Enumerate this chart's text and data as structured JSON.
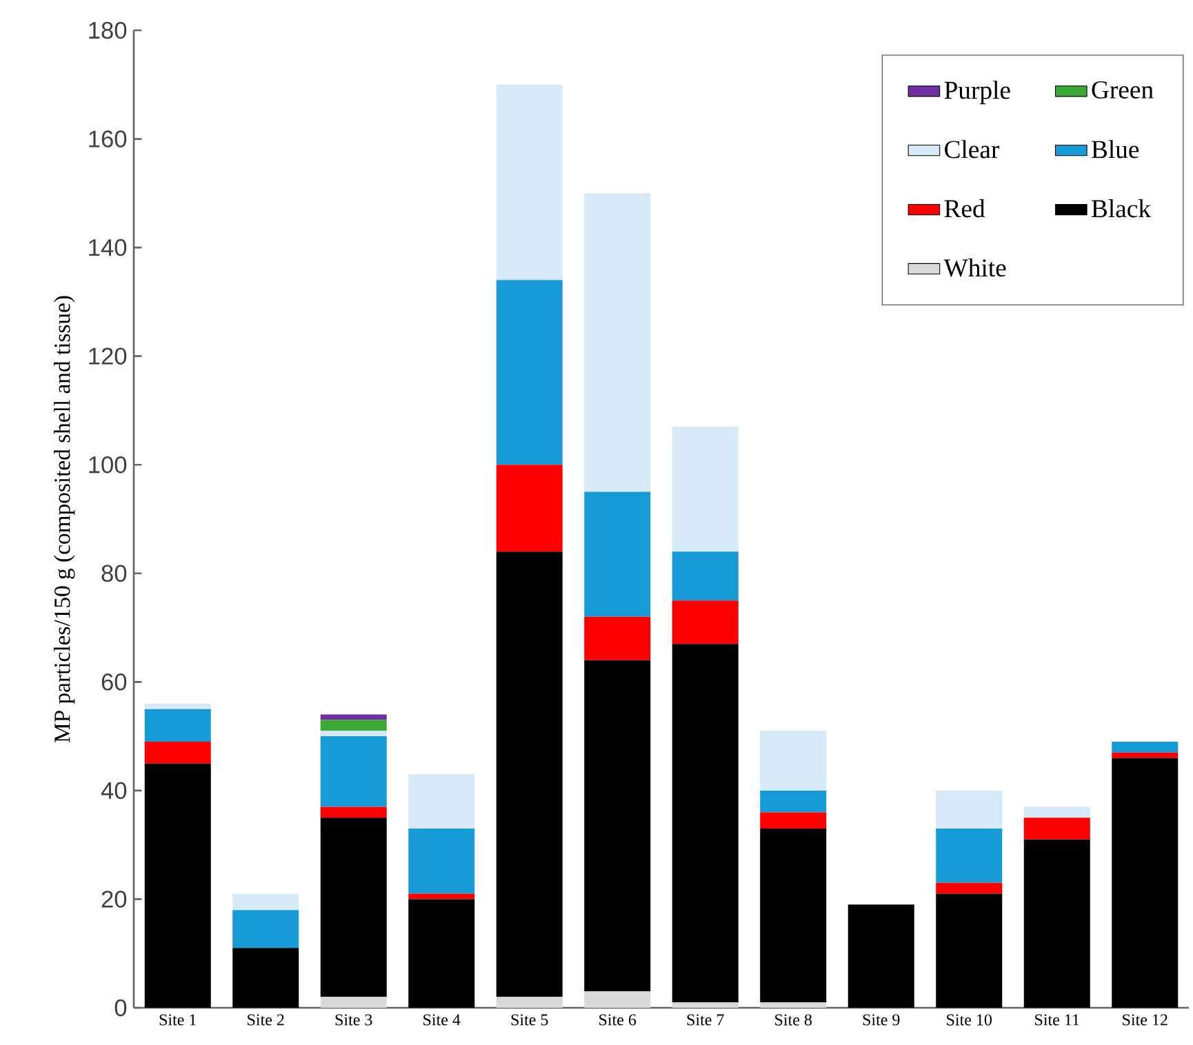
{
  "chart_data": {
    "type": "bar",
    "stacked": true,
    "ylabel": "MP particles/150 g (composited shell and tissue)",
    "categories": [
      "Site 1",
      "Site 2",
      "Site 3",
      "Site 4",
      "Site 5",
      "Site 6",
      "Site 7",
      "Site 8",
      "Site 9",
      "Site 10",
      "Site 11",
      "Site 12"
    ],
    "ylim": [
      0,
      180
    ],
    "yticks": [
      0,
      20,
      40,
      60,
      80,
      100,
      120,
      140,
      160,
      180
    ],
    "legend": "top right",
    "series": [
      {
        "name": "White",
        "color": "#d9d9d9",
        "values": [
          0,
          0,
          2,
          0,
          2,
          3,
          1,
          1,
          0,
          0,
          0,
          0
        ]
      },
      {
        "name": "Black",
        "color": "#000000",
        "values": [
          45,
          11,
          33,
          20,
          82,
          61,
          66,
          32,
          19,
          21,
          31,
          46
        ]
      },
      {
        "name": "Red",
        "color": "#ff0000",
        "values": [
          4,
          0,
          2,
          1,
          16,
          8,
          8,
          3,
          0,
          2,
          4,
          1
        ]
      },
      {
        "name": "Blue",
        "color": "#179bd7",
        "values": [
          6,
          7,
          13,
          12,
          34,
          23,
          9,
          4,
          0,
          10,
          0,
          2
        ]
      },
      {
        "name": "Clear",
        "color": "#d6e9f6",
        "values": [
          1,
          3,
          1,
          10,
          36,
          55,
          23,
          11,
          0,
          7,
          2,
          0
        ]
      },
      {
        "name": "Green",
        "color": "#3aaa35",
        "values": [
          0,
          0,
          2,
          0,
          0,
          0,
          0,
          0,
          0,
          0,
          0,
          0
        ]
      },
      {
        "name": "Purple",
        "color": "#7030a0",
        "values": [
          0,
          0,
          1,
          0,
          0,
          0,
          0,
          0,
          0,
          0,
          0,
          0
        ]
      }
    ]
  }
}
